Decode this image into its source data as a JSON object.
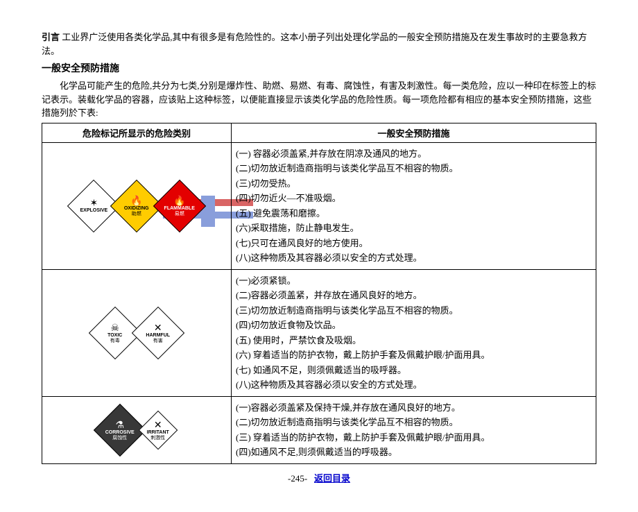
{
  "intro": {
    "label": "引言",
    "text": " 工业界广泛使用各类化学品,其中有很多是有危险性的。这本小册子列出处理化学品的一般安全预防措施及在发生事故时的主要急救方法。"
  },
  "section": {
    "title": "一般安全预防措施",
    "para": "化学品可能产生的危险,共分为七类,分别是爆炸性、助燃、易燃、有毒、腐蚀性，有害及刺激性。每一类危险，应以一种印在标签上的标记表示。装载化学品的容器，应该贴上这种标签，以便能直接显示该类化学品的危险性质。每一项危险都有相应的基本安全预防措施，这些措施列於下表:"
  },
  "table": {
    "headers": [
      "危险标记所显示的危险类别",
      "一般安全预防措施"
    ],
    "rows": [
      {
        "icons": [
          {
            "bg": "#ffffff",
            "border": "#000000",
            "text_top": "✶",
            "label": "EXPLOSIVE",
            "cn": ""
          },
          {
            "bg": "#ffcc00",
            "border": "#000000",
            "text_top": "🔥",
            "label": "OXIDIZING",
            "cn": "助燃"
          },
          {
            "bg": "#e30000",
            "border": "#000000",
            "text_color": "#ffffff",
            "text_top": "🔥",
            "label": "FLAMMABLE",
            "cn": "易燃"
          }
        ],
        "measures": [
          "(一) 容器必须盖紧,并存放在阴凉及通风的地方。",
          "(二)切勿放近制造商指明与该类化学品互不相容的物质。",
          "(三)切勿受热。",
          "(四)切勿近火—不准吸烟。",
          "(五) 避免震荡和磨擦。",
          "(六)采取措施，防止静电发生。",
          "(七)只可在通风良好的地方使用。",
          "(八)这种物质及其容器必须以安全的方式处理。"
        ]
      },
      {
        "icons": [
          {
            "bg": "#ffffff",
            "border": "#000000",
            "text_top": "☠",
            "label": "TOXIC",
            "cn": "有毒"
          },
          {
            "bg": "#ffffff",
            "border": "#000000",
            "text_top": "✕",
            "label": "HARMFUL",
            "cn": "有害"
          }
        ],
        "measures": [
          "(一)必须紧锁。",
          "(二)容器必须盖紧，并存放在通风良好的地方。",
          "(三)切勿放近制造商指明与该类化学品互不相容的物质。",
          "(四)切勿放近食物及饮品。",
          "(五) 使用时，严禁饮食及吸烟。",
          "(六) 穿着适当的防护衣物，戴上防护手套及佩戴护眼/护面用具。",
          "(七) 如通风不足，则须佩戴适当的吸呼器。",
          "(八)这种物质及其容器必须以安全的方式处理。"
        ]
      },
      {
        "icons": [
          {
            "bg": "#383838",
            "border": "#000000",
            "text_color": "#ffffff",
            "text_top": "⚗",
            "label": "CORROSIVE",
            "cn": "腐蚀性",
            "small": false
          },
          {
            "bg": "#ffffff",
            "border": "#000000",
            "text_top": "✕",
            "label": "IRRITANT",
            "cn": "刺激性",
            "small": true
          }
        ],
        "measures": [
          "(一)容器必须盖紧及保持干燥,并存放在通风良好的地方。",
          "(二)切勿放近制造商指明与该类化学品互不相容的物质。",
          "(三) 穿着适当的防护衣物，戴上防护手套及佩戴护眼/护面用具。",
          "(四)如通风不足,则须佩戴适当的呼吸器。"
        ]
      }
    ]
  },
  "footer": {
    "page": "-245-",
    "link": "返回目录"
  }
}
